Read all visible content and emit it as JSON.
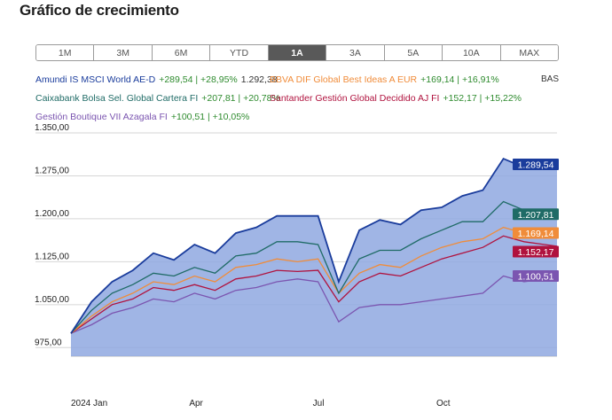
{
  "page": {
    "title": "Gráfico de crecimiento"
  },
  "periods": [
    "1M",
    "3M",
    "6M",
    "YTD",
    "1A",
    "3A",
    "5A",
    "10A",
    "MAX"
  ],
  "active_period": "1A",
  "legend_extra": "BAS",
  "colors": {
    "amundi": "#1a3c9c",
    "amundi_fill": "#8fa8e0",
    "caixabank": "#1f6b66",
    "bbva": "#f08c3a",
    "santander": "#b0123e",
    "boutique": "#7b55b0",
    "stats_green": "#2e8b2e"
  },
  "legend": [
    {
      "key": "amundi",
      "name": "Amundi IS MSCI World AE-D",
      "stats": "+289,54 | +28,95%",
      "value": "1.292,38"
    },
    {
      "key": "bbva",
      "name": "BBVA DIF Global Best Ideas A EUR",
      "stats": "+169,14 | +16,91%",
      "value": ""
    },
    {
      "key": "caixabank",
      "name": "Caixabank Bolsa Sel. Global Cartera FI",
      "stats": "+207,81 | +20,78%",
      "value": ""
    },
    {
      "key": "santander",
      "name": "Santander Gestión Global Decidido AJ FI",
      "stats": "+152,17 | +15,22%",
      "value": ""
    },
    {
      "key": "boutique",
      "name": "Gestión Boutique VII Azagala FI",
      "stats": "+100,51 | +10,05%",
      "value": ""
    }
  ],
  "chart_data": {
    "type": "line",
    "y_tick_labels": [
      "1.350,00",
      "1.275,00",
      "1.200,00",
      "1.125,00",
      "1.050,00",
      "975,00"
    ],
    "y_ticks": [
      1350,
      1275,
      1200,
      1125,
      1050,
      975
    ],
    "x_tick_labels": [
      "2024 Jan",
      "Apr",
      "Jul",
      "Oct"
    ],
    "x_ticks": [
      0,
      3,
      6,
      9
    ],
    "x_range": [
      0,
      11.8
    ],
    "ylim": [
      960,
      1350
    ],
    "series": [
      {
        "key": "amundi",
        "name": "Amundi IS MSCI World AE-D",
        "end_label": "1.289,54",
        "x": [
          0,
          0.5,
          1,
          1.5,
          2,
          2.5,
          3,
          3.5,
          4,
          4.5,
          5,
          5.5,
          6,
          6.5,
          7,
          7.5,
          8,
          8.5,
          9,
          9.5,
          10,
          10.5,
          11,
          11.5,
          11.8
        ],
        "y": [
          1000,
          1055,
          1090,
          1110,
          1140,
          1128,
          1155,
          1140,
          1175,
          1185,
          1205,
          1205,
          1205,
          1090,
          1180,
          1198,
          1190,
          1215,
          1220,
          1240,
          1250,
          1305,
          1290,
          1295,
          1295
        ]
      },
      {
        "key": "caixabank",
        "name": "Caixabank Bolsa Sel. Global Cartera FI",
        "end_label": "1.207,81",
        "x": [
          0,
          0.5,
          1,
          1.5,
          2,
          2.5,
          3,
          3.5,
          4,
          4.5,
          5,
          5.5,
          6,
          6.5,
          7,
          7.5,
          8,
          8.5,
          9,
          9.5,
          10,
          10.5,
          11,
          11.5,
          11.8
        ],
        "y": [
          1000,
          1040,
          1070,
          1085,
          1105,
          1100,
          1115,
          1105,
          1135,
          1140,
          1160,
          1160,
          1155,
          1070,
          1130,
          1145,
          1145,
          1165,
          1180,
          1195,
          1195,
          1230,
          1215,
          1210,
          1208
        ]
      },
      {
        "key": "bbva",
        "name": "BBVA DIF Global Best Ideas A EUR",
        "end_label": "1.169,14",
        "x": [
          0,
          0.5,
          1,
          1.5,
          2,
          2.5,
          3,
          3.5,
          4,
          4.5,
          5,
          5.5,
          6,
          6.5,
          7,
          7.5,
          8,
          8.5,
          9,
          9.5,
          10,
          10.5,
          11,
          11.5,
          11.8
        ],
        "y": [
          1000,
          1030,
          1055,
          1070,
          1090,
          1085,
          1100,
          1090,
          1115,
          1120,
          1130,
          1125,
          1130,
          1070,
          1105,
          1120,
          1115,
          1135,
          1150,
          1160,
          1165,
          1185,
          1175,
          1170,
          1169
        ]
      },
      {
        "key": "santander",
        "name": "Santander Gestión Global Decidido AJ FI",
        "end_label": "1.152,17",
        "x": [
          0,
          0.5,
          1,
          1.5,
          2,
          2.5,
          3,
          3.5,
          4,
          4.5,
          5,
          5.5,
          6,
          6.5,
          7,
          7.5,
          8,
          8.5,
          9,
          9.5,
          10,
          10.5,
          11,
          11.5,
          11.8
        ],
        "y": [
          1000,
          1025,
          1050,
          1060,
          1080,
          1075,
          1085,
          1075,
          1095,
          1100,
          1110,
          1108,
          1110,
          1055,
          1090,
          1105,
          1100,
          1115,
          1130,
          1140,
          1150,
          1170,
          1160,
          1155,
          1152
        ]
      },
      {
        "key": "boutique",
        "name": "Gestión Boutique VII Azagala FI",
        "end_label": "1.100,51",
        "x": [
          0,
          0.5,
          1,
          1.5,
          2,
          2.5,
          3,
          3.5,
          4,
          4.5,
          5,
          5.5,
          6,
          6.5,
          7,
          7.5,
          8,
          8.5,
          9,
          9.5,
          10,
          10.5,
          11,
          11.5,
          11.8
        ],
        "y": [
          1000,
          1015,
          1035,
          1045,
          1060,
          1055,
          1070,
          1060,
          1075,
          1080,
          1090,
          1095,
          1090,
          1020,
          1045,
          1050,
          1050,
          1055,
          1060,
          1065,
          1070,
          1100,
          1090,
          1095,
          1100
        ]
      }
    ]
  }
}
